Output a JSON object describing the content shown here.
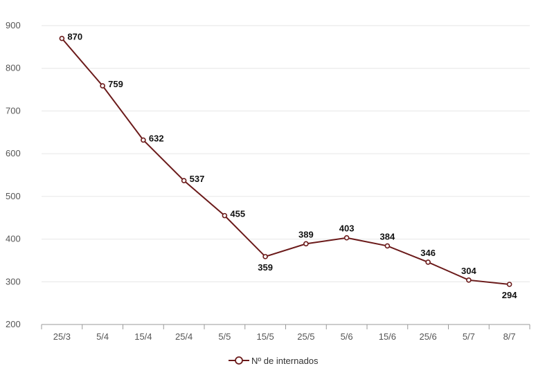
{
  "chart_data": {
    "type": "line",
    "title": "",
    "xlabel": "",
    "ylabel": "",
    "categories": [
      "25/3",
      "5/4",
      "15/4",
      "25/4",
      "5/5",
      "15/5",
      "25/5",
      "5/6",
      "15/6",
      "25/6",
      "5/7",
      "8/7"
    ],
    "series": [
      {
        "name": "Nº de internados",
        "values": [
          870,
          759,
          632,
          537,
          455,
          359,
          389,
          403,
          384,
          346,
          304,
          294
        ]
      }
    ],
    "ylim": [
      200,
      900
    ],
    "yticks": [
      200,
      300,
      400,
      500,
      600,
      700,
      800,
      900
    ],
    "grid": true,
    "legend": "bottom-center",
    "data_label_positions": [
      "right",
      "right",
      "right",
      "right",
      "right",
      "below",
      "above",
      "above",
      "above",
      "above",
      "above",
      "below"
    ],
    "colors": {
      "line": "#6b1a1a",
      "grid": "#e6e6e6",
      "axis": "#999999"
    }
  }
}
